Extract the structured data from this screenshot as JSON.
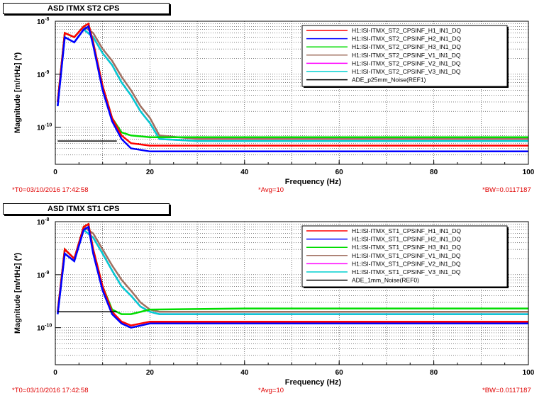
{
  "panels": [
    {
      "title": "ASD ITMX ST2 CPS",
      "footer": {
        "t0": "*T0=03/10/2016 17:42:58",
        "avg": "*Avg=10",
        "bw": "*BW=0.0117187"
      }
    },
    {
      "title": "ASD ITMX ST1 CPS",
      "footer": {
        "t0": "*T0=03/10/2016 17:42:58",
        "avg": "*Avg=10",
        "bw": "*BW=0.0117187"
      }
    }
  ],
  "chart_data": [
    {
      "type": "line",
      "xlabel": "Frequency (Hz)",
      "ylabel": "Magnitude [m/rtHz] (*)",
      "xlim": [
        0,
        100
      ],
      "ylim": [
        2e-11,
        1e-08
      ],
      "yscale": "log",
      "grid": true,
      "legend_position": "top-right",
      "x_ticks": [
        "0",
        "20",
        "40",
        "60",
        "80",
        "100"
      ],
      "y_ticks": [
        {
          "base": "10",
          "exp": "-10",
          "value": 1e-10
        },
        {
          "base": "10",
          "exp": "-9",
          "value": 1e-09
        },
        {
          "base": "10",
          "exp": "-8",
          "value": 1e-08
        }
      ],
      "series": [
        {
          "name": "H1:ISI-ITMX_ST2_CPSINF_H1_IN1_DQ",
          "color": "#ff0000",
          "x": [
            0.5,
            2,
            4,
            6,
            7,
            8,
            10,
            12,
            14,
            16,
            20,
            40,
            60,
            80,
            100
          ],
          "y": [
            3e-10,
            6e-09,
            5e-09,
            8e-09,
            9e-09,
            4e-09,
            6e-10,
            1.5e-10,
            7e-11,
            5e-11,
            4.5e-11,
            4.5e-11,
            4.5e-11,
            4.5e-11,
            4.5e-11
          ]
        },
        {
          "name": "H1:ISI-ITMX_ST2_CPSINF_H2_IN1_DQ",
          "color": "#0000ff",
          "x": [
            0.5,
            2,
            4,
            6,
            7,
            8,
            10,
            12,
            14,
            16,
            20,
            40,
            60,
            80,
            100
          ],
          "y": [
            2.5e-10,
            5e-09,
            4e-09,
            7e-09,
            8e-09,
            3.5e-09,
            5e-10,
            1.3e-10,
            6e-11,
            4e-11,
            3.5e-11,
            3.5e-11,
            3.5e-11,
            3.5e-11,
            3.5e-11
          ]
        },
        {
          "name": "H1:ISI-ITMX_ST2_CPSINF_H3_IN1_DQ",
          "color": "#00dd00",
          "x": [
            0.5,
            2,
            4,
            6,
            7,
            8,
            10,
            12,
            14,
            16,
            20,
            40,
            60,
            80,
            100
          ],
          "y": [
            3e-10,
            6e-09,
            5e-09,
            8e-09,
            9e-09,
            4e-09,
            6e-10,
            1.5e-10,
            8e-11,
            7e-11,
            6.5e-11,
            6.5e-11,
            6.5e-11,
            6.5e-11,
            6.5e-11
          ]
        },
        {
          "name": "H1:ISI-ITMX_ST2_CPSINF_V1_IN1_DQ",
          "color": "#a07060",
          "x": [
            0.5,
            2,
            4,
            6,
            8,
            10,
            12,
            14,
            16,
            18,
            20,
            22,
            30,
            60,
            100
          ],
          "y": [
            3e-10,
            6e-09,
            5e-09,
            8e-09,
            6e-09,
            3e-09,
            1.8e-09,
            9e-10,
            5e-10,
            2.5e-10,
            1.5e-10,
            7e-11,
            6e-11,
            6e-11,
            6e-11
          ]
        },
        {
          "name": "H1:ISI-ITMX_ST2_CPSINF_V2_IN1_DQ",
          "color": "#ff00ff",
          "x": [
            0.5,
            2,
            4,
            6,
            8,
            10,
            12,
            14,
            16,
            18,
            20,
            22,
            30,
            60,
            100
          ],
          "y": [
            2.5e-10,
            5e-09,
            4e-09,
            7e-09,
            5e-09,
            2.5e-09,
            1.5e-09,
            7e-10,
            4e-10,
            2e-10,
            1.2e-10,
            6e-11,
            5.5e-11,
            5.5e-11,
            5.5e-11
          ]
        },
        {
          "name": "H1:ISI-ITMX_ST2_CPSINF_V3_IN1_DQ",
          "color": "#00d0d0",
          "x": [
            0.5,
            2,
            4,
            6,
            8,
            10,
            12,
            14,
            16,
            18,
            20,
            22,
            30,
            60,
            100
          ],
          "y": [
            2.5e-10,
            5e-09,
            4e-09,
            7e-09,
            5e-09,
            2.5e-09,
            1.5e-09,
            7e-10,
            4e-10,
            2e-10,
            1.2e-10,
            6e-11,
            5.5e-11,
            5.5e-11,
            5.5e-11
          ]
        },
        {
          "name": "ADE_p25mm_Noise(REF1)",
          "color": "#000000",
          "x": [
            0.5,
            13
          ],
          "y": [
            5.5e-11,
            5.5e-11
          ]
        }
      ]
    },
    {
      "type": "line",
      "xlabel": "Frequency (Hz)",
      "ylabel": "Magnitude [m/rtHz] (*)",
      "xlim": [
        0,
        100
      ],
      "ylim": [
        2e-11,
        1e-08
      ],
      "yscale": "log",
      "grid": true,
      "legend_position": "top-right",
      "x_ticks": [
        "0",
        "20",
        "40",
        "60",
        "80",
        "100"
      ],
      "y_ticks": [
        {
          "base": "10",
          "exp": "-10",
          "value": 1e-10
        },
        {
          "base": "10",
          "exp": "-9",
          "value": 1e-09
        },
        {
          "base": "10",
          "exp": "-8",
          "value": 1e-08
        }
      ],
      "series": [
        {
          "name": "H1:ISI-ITMX_ST1_CPSINF_H1_IN1_DQ",
          "color": "#ff0000",
          "x": [
            0.5,
            2,
            4,
            6,
            7,
            8,
            10,
            12,
            14,
            16,
            20,
            40,
            60,
            80,
            100
          ],
          "y": [
            2e-10,
            3e-09,
            2e-09,
            8e-09,
            9e-09,
            3e-09,
            6e-10,
            2e-10,
            1.3e-10,
            1.1e-10,
            1.3e-10,
            1.3e-10,
            1.3e-10,
            1.3e-10,
            1.3e-10
          ]
        },
        {
          "name": "H1:ISI-ITMX_ST1_CPSINF_H2_IN1_DQ",
          "color": "#0000ff",
          "x": [
            0.5,
            2,
            4,
            6,
            7,
            8,
            10,
            12,
            14,
            16,
            20,
            40,
            60,
            80,
            100
          ],
          "y": [
            1.8e-10,
            2.5e-09,
            1.8e-09,
            7e-09,
            8e-09,
            2.5e-09,
            5e-10,
            1.8e-10,
            1.2e-10,
            1e-10,
            1.2e-10,
            1.2e-10,
            1.2e-10,
            1.2e-10,
            1.2e-10
          ]
        },
        {
          "name": "H1:ISI-ITMX_ST1_CPSINF_H3_IN1_DQ",
          "color": "#00dd00",
          "x": [
            0.5,
            2,
            4,
            6,
            7,
            8,
            10,
            12,
            14,
            16,
            20,
            40,
            60,
            80,
            100
          ],
          "y": [
            2e-10,
            3e-09,
            2e-09,
            8e-09,
            9e-09,
            3e-09,
            6e-10,
            2.2e-10,
            1.8e-10,
            1.8e-10,
            2.2e-10,
            2.3e-10,
            2.3e-10,
            2.3e-10,
            2.3e-10
          ]
        },
        {
          "name": "H1:ISI-ITMX_ST1_CPSINF_V1_IN1_DQ",
          "color": "#a07060",
          "x": [
            0.5,
            2,
            4,
            6,
            8,
            10,
            12,
            14,
            16,
            18,
            20,
            22,
            30,
            60,
            100
          ],
          "y": [
            2e-10,
            3e-09,
            2e-09,
            8e-09,
            6e-09,
            3e-09,
            1.5e-09,
            8e-10,
            5e-10,
            3e-10,
            2.2e-10,
            2e-10,
            2e-10,
            2e-10,
            2e-10
          ]
        },
        {
          "name": "H1:ISI-ITMX_ST1_CPSINF_V2_IN1_DQ",
          "color": "#ff00ff",
          "x": [
            0.5,
            2,
            4,
            6,
            8,
            10,
            12,
            14,
            16,
            18,
            20,
            22,
            30,
            60,
            100
          ],
          "y": [
            1.8e-10,
            2.5e-09,
            1.8e-09,
            7e-09,
            5e-09,
            2.5e-09,
            1.2e-09,
            6e-10,
            4e-10,
            2.5e-10,
            2e-10,
            1.8e-10,
            1.8e-10,
            1.8e-10,
            1.8e-10
          ]
        },
        {
          "name": "H1:ISI-ITMX_ST1_CPSINF_V3_IN1_DQ",
          "color": "#00d0d0",
          "x": [
            0.5,
            2,
            4,
            6,
            8,
            10,
            12,
            14,
            16,
            18,
            20,
            22,
            30,
            60,
            100
          ],
          "y": [
            1.8e-10,
            2.5e-09,
            1.8e-09,
            7e-09,
            5e-09,
            2.5e-09,
            1.2e-09,
            6e-10,
            4e-10,
            2.5e-10,
            2e-10,
            1.8e-10,
            1.8e-10,
            1.8e-10,
            1.8e-10
          ]
        },
        {
          "name": "ADE_1mm_Noise(REF0)",
          "color": "#000000",
          "x": [
            0.5,
            13
          ],
          "y": [
            2e-10,
            2e-10
          ]
        }
      ]
    }
  ]
}
